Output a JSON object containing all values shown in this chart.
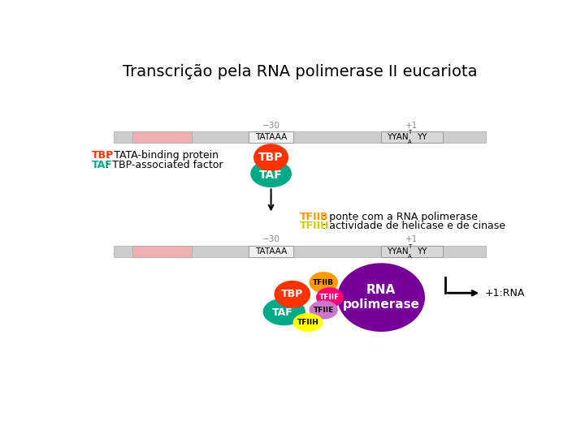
{
  "title": "Transcrição pela RNA polimerase II eucariota",
  "title_fontsize": 14,
  "bg_color": "#ffffff",
  "dna_bar_color": "#cccccc",
  "dna_pink_color": "#f0b0b0",
  "tata_box_color": "#f0f0f0",
  "yyan_box_color": "#d8d8d8",
  "tbp_color": "#ff3300",
  "taf_color": "#00aa88",
  "tfiib_color": "#ff9900",
  "tfiif_color": "#ff0077",
  "tfiie_color": "#cc77cc",
  "tfiih_color": "#ffff00",
  "rna_pol_color": "#770099",
  "label_tbp_color": "#ff3300",
  "label_taf_color": "#00aa88",
  "label_tfiib_color": "#ff9900",
  "label_tfiih_color": "#cccc00",
  "text_color": "#000000",
  "white_text": "#ffffff",
  "gray_text": "#888888",
  "arrow_color": "#000000",
  "tbp_label": "TBP",
  "taf_label": "TAF",
  "tbp_full": "TBP",
  "taf_full": "TAF",
  "tbp_desc": ": TATA-binding protein",
  "taf_desc": ": TBP-associated factor",
  "tfiib_note1": "TFIIB",
  "tfiib_note2": ": ponte com a RNA polimerase",
  "tfiih_note1": "TFIIH",
  "tfiih_note2": ": actividade de helicase e de cinase",
  "minus30": "−30",
  "plus1": "+1",
  "tataaa": "TATAAA",
  "rna_label1": "RNA",
  "rna_label2": "polimerase",
  "plus1_rna": "+1:RNA",
  "tfiib_tag": "TFIIB",
  "tfiif_tag": "TFIIF",
  "tfiie_tag": "TFIIE",
  "tfiih_tag": "TFIIH"
}
